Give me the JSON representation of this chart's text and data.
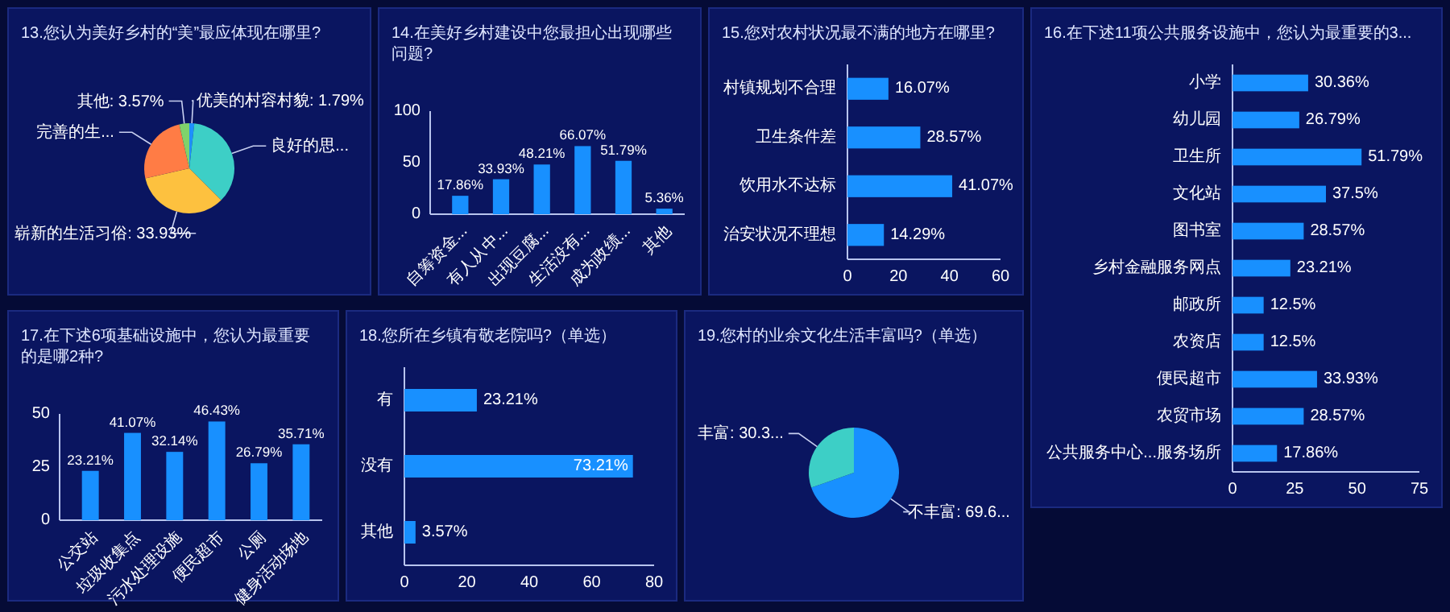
{
  "chart_data": [
    {
      "type": "pie",
      "title": "13.您认为美好乡村的“美”最应体现在哪里?",
      "categories": [
        "优美的村容村貌",
        "良好的思...",
        "崭新的生活习俗",
        "完善的生...",
        "其他"
      ],
      "values": [
        1.79,
        35.71,
        33.93,
        25,
        3.57
      ],
      "value_labels": [
        "1.79%",
        null,
        "33.93%",
        null,
        "3.57%"
      ],
      "colors": [
        "#1e90ff",
        "#3dcfc6",
        "#fdc13f",
        "#ff7c45",
        "#7fd36b"
      ]
    },
    {
      "type": "bar",
      "title": "14.在美好乡村建设中您最担心出现哪些问题?",
      "categories": [
        "自筹资金...",
        "有人从中...",
        "出现豆腐...",
        "生活没有...",
        "成为政绩...",
        "其他"
      ],
      "values": [
        17.86,
        33.93,
        48.21,
        66.07,
        51.79,
        5.36
      ],
      "value_labels": [
        "17.86%",
        "33.93%",
        "48.21%",
        "66.07%",
        "51.79%",
        "5.36%"
      ],
      "color": "#1890ff",
      "ylim": [
        0,
        100
      ],
      "yticks": [
        0,
        50,
        100
      ]
    },
    {
      "type": "bar",
      "orientation": "horizontal",
      "title": "15.您对农村状况最不满的地方在哪里?",
      "categories": [
        "村镇规划不合理",
        "卫生条件差",
        "饮用水不达标",
        "治安状况不理想"
      ],
      "values": [
        16.07,
        28.57,
        41.07,
        14.29
      ],
      "value_labels": [
        "16.07%",
        "28.57%",
        "41.07%",
        "14.29%"
      ],
      "color": "#1890ff",
      "xlim": [
        0,
        60
      ],
      "xticks": [
        0,
        20,
        40,
        60
      ]
    },
    {
      "type": "bar",
      "orientation": "horizontal",
      "title": "16.在下述11项公共服务设施中，您认为最重要的3...",
      "categories": [
        "小学",
        "幼儿园",
        "卫生所",
        "文化站",
        "图书室",
        "乡村金融服务网点",
        "邮政所",
        "农资店",
        "便民超市",
        "农贸市场",
        "公共服务中心...服务场所"
      ],
      "values": [
        30.36,
        26.79,
        51.79,
        37.5,
        28.57,
        23.21,
        12.5,
        12.5,
        33.93,
        28.57,
        17.86
      ],
      "value_labels": [
        "30.36%",
        "26.79%",
        "51.79%",
        "37.5%",
        "28.57%",
        "23.21%",
        "12.5%",
        "12.5%",
        "33.93%",
        "28.57%",
        "17.86%"
      ],
      "color": "#1890ff",
      "xlim": [
        0,
        75
      ],
      "xticks": [
        0,
        25,
        50,
        75
      ]
    },
    {
      "type": "bar",
      "title": "17.在下述6项基础设施中，您认为最重要的是哪2种?",
      "categories": [
        "公交站",
        "垃圾收集点",
        "污水处理设施",
        "便民超市",
        "公厕",
        "健身活动场地"
      ],
      "values": [
        23.21,
        41.07,
        32.14,
        46.43,
        26.79,
        35.71
      ],
      "value_labels": [
        "23.21%",
        "41.07%",
        "32.14%",
        "46.43%",
        "26.79%",
        "35.71%"
      ],
      "color": "#1890ff",
      "ylim": [
        0,
        50
      ],
      "yticks": [
        0,
        25,
        50
      ]
    },
    {
      "type": "bar",
      "orientation": "horizontal",
      "title": "18.您所在乡镇有敬老院吗?（单选）",
      "categories": [
        "有",
        "没有",
        "其他"
      ],
      "values": [
        23.21,
        73.21,
        3.57
      ],
      "value_labels": [
        "23.21%",
        "73.21%",
        "3.57%"
      ],
      "color": "#1890ff",
      "xlim": [
        0,
        80
      ],
      "xticks": [
        0,
        20,
        40,
        60,
        80
      ]
    },
    {
      "type": "pie",
      "title": "19.您村的业余文化生活丰富吗?（单选）",
      "categories": [
        "不丰富",
        "丰富"
      ],
      "values": [
        69.64,
        30.36
      ],
      "value_labels": [
        "69.6...",
        "30.3..."
      ],
      "colors": [
        "#1890ff",
        "#3dcfc6"
      ]
    }
  ]
}
